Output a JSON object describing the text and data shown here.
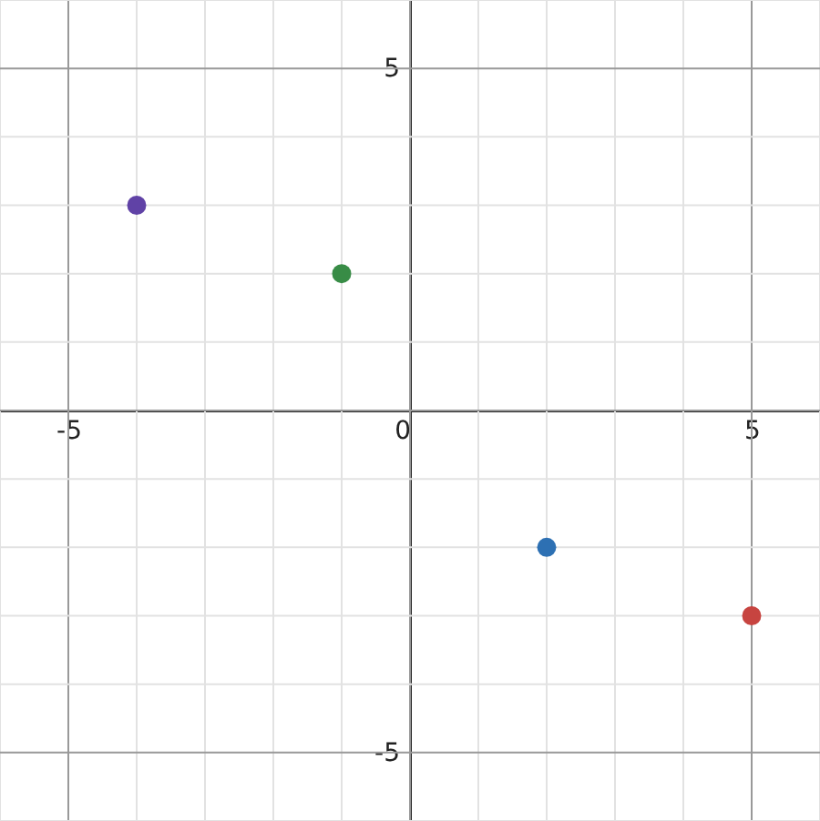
{
  "chart_data": {
    "type": "scatter",
    "xlim": [
      -6,
      6
    ],
    "ylim": [
      -6,
      6
    ],
    "xticks": [
      -5,
      0,
      5
    ],
    "yticks": [
      -5,
      5
    ],
    "grid": true,
    "marker": "circle",
    "series": [
      {
        "color": "#6042a6",
        "x": [
          -4
        ],
        "values": [
          3
        ]
      },
      {
        "color": "#388c46",
        "x": [
          -1
        ],
        "values": [
          2
        ]
      },
      {
        "color": "#2d70b3",
        "x": [
          2
        ],
        "values": [
          -2
        ]
      },
      {
        "color": "#c74440",
        "x": [
          5
        ],
        "values": [
          -3
        ]
      }
    ]
  }
}
